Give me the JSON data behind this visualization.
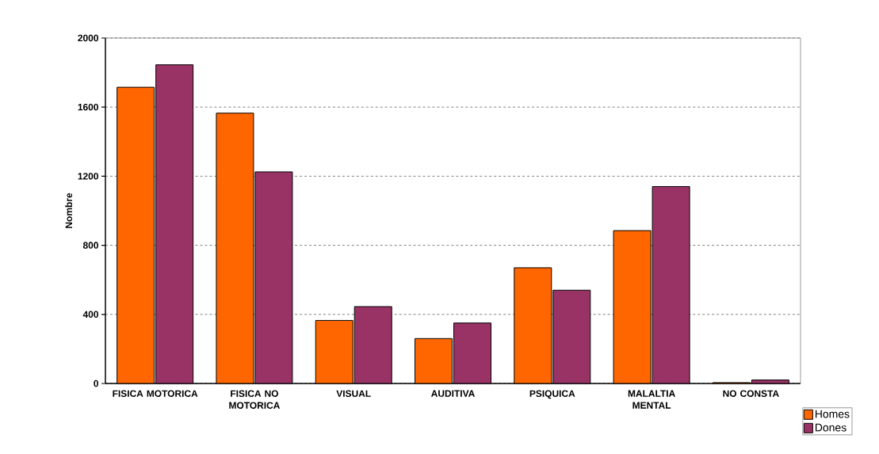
{
  "chart_data": {
    "type": "bar",
    "ylabel": "Nombre",
    "categories": [
      "FISICA MOTORICA",
      "FISICA NO MOTORICA",
      "VISUAL",
      "AUDITIVA",
      "PSIQUICA",
      "MALALTIA MENTAL",
      "NO CONSTA"
    ],
    "series": [
      {
        "name": "Homes",
        "color": "#ff6600",
        "values": [
          1715,
          1565,
          365,
          260,
          670,
          885,
          5
        ]
      },
      {
        "name": "Dones",
        "color": "#993366",
        "values": [
          1845,
          1225,
          445,
          350,
          540,
          1140,
          20
        ]
      }
    ],
    "ylim": [
      0,
      2000
    ],
    "yticks": [
      0,
      400,
      800,
      1200,
      1600,
      2000
    ],
    "grid": "y",
    "legend": "bottom right"
  }
}
